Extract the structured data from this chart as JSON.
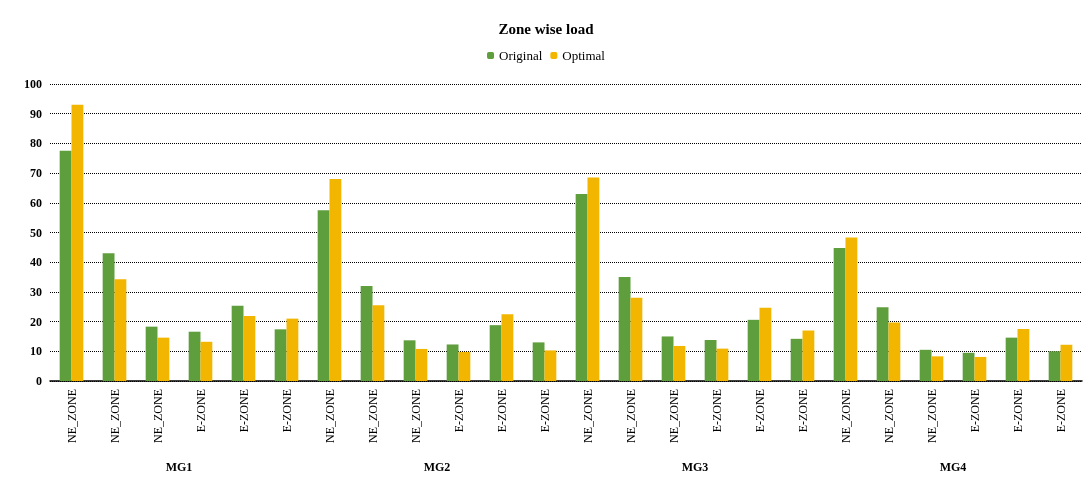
{
  "chart_data": {
    "type": "bar",
    "title": "Zone wise load",
    "categories": [
      "NE_ZONE",
      "NE_ZONE",
      "NE_ZONE",
      "E-ZONE",
      "E-ZONE",
      "E-ZONE",
      "NE_ZONE",
      "NE_ZONE",
      "NE_ZONE",
      "E-ZONE",
      "E-ZONE",
      "E-ZONE",
      "NE_ZONE",
      "NE_ZONE",
      "NE_ZONE",
      "E-ZONE",
      "E-ZONE",
      "E-ZONE",
      "NE_ZONE",
      "NE_ZONE",
      "NE_ZONE",
      "E-ZONE",
      "E-ZONE",
      "E-ZONE"
    ],
    "series": [
      {
        "name": "Original",
        "color": "#5f9e3c",
        "values": [
          77.5,
          43,
          18.3,
          16.6,
          25.3,
          17.4,
          57.5,
          32,
          13.7,
          12.3,
          18.8,
          13,
          63,
          35,
          15,
          13.8,
          20.6,
          14.2,
          44.8,
          24.8,
          10.5,
          9.5,
          14.6,
          10
        ]
      },
      {
        "name": "Optimal",
        "color": "#f2b600",
        "values": [
          93,
          34.3,
          14.6,
          13.2,
          21.9,
          21,
          68,
          25.5,
          10.8,
          9.8,
          22.5,
          10.3,
          68.5,
          28,
          11.8,
          10.9,
          24.7,
          17,
          48.3,
          19.7,
          8.3,
          8.1,
          17.5,
          12.2
        ]
      }
    ],
    "annotations": [
      "MG1",
      "MG2",
      "MG3",
      "MG4"
    ],
    "ylim": [
      0,
      100
    ],
    "yticks": [
      0,
      10,
      20,
      30,
      40,
      50,
      60,
      70,
      80,
      90,
      100
    ],
    "grid": "y",
    "legend": "top"
  }
}
